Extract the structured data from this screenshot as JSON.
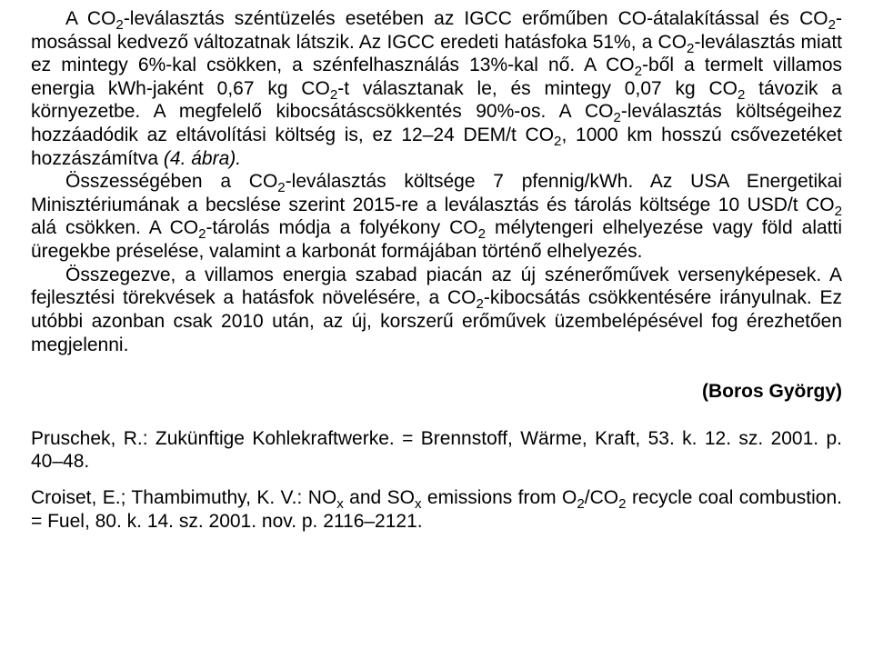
{
  "body": {
    "p1a": "A CO",
    "p1b": "-leválasztás széntüzelés esetében az IGCC erőműben CO-átalakítással és CO",
    "p1c": "-mosással kedvező változatnak látszik. Az IGCC eredeti hatásfoka 51%, a CO",
    "p1d": "-leválasztás miatt ez mintegy 6%-kal csökken, a szénfelhasználás 13%-kal nő. A CO",
    "p1e": "-ből a termelt villamos energia kWh-jaként 0,67 kg CO",
    "p1f": "-t választanak le, és mintegy 0,07 kg CO",
    "p1g": " távozik a környezetbe. A megfelelő kibocsátáscsökkentés 90%-os. A CO",
    "p1h": "-leválasztás költségeihez hozzáadódik az eltávolítási költség is, ez 12–24 DEM/t CO",
    "p1i": ", 1000 km hosszú csővezetéket hozzászámítva ",
    "p1j": "(4. ábra).",
    "p2a": "Összességében a CO",
    "p2b": "-leválasztás költsége 7 pfennig/kWh. Az USA Energetikai Minisztériumának a becslése szerint 2015-re a leválasztás és tárolás költsége 10 USD/t CO",
    "p2c": " alá csökken. A CO",
    "p2d": "-tárolás módja a folyékony CO",
    "p2e": " mélytengeri elhelyezése vagy föld alatti üregekbe préselése, valamint a karbonát formájában történő elhelyezés.",
    "p3a": "Összegezve, a villamos energia szabad piacán az új szénerőművek versenyképesek. A fejlesztési törekvések a hatásfok növelésére, a CO",
    "p3b": "-kibocsátás csökkentésére irányulnak. Ez utóbbi azonban csak 2010 után, az új, korszerű erőművek üzembelépésével fog érezhetően megjelenni."
  },
  "author": "(Boros György)",
  "refs": {
    "r1": "Pruschek, R.: Zukünftige Kohlekraftwerke. = Brennstoff, Wärme, Kraft, 53. k. 12. sz. 2001. p. 40–48.",
    "r2a": "Croiset, E.; Thambimuthy, K. V.: NO",
    "r2b": " and SO",
    "r2c": " emissions from O",
    "r2d": "/CO",
    "r2e": " recycle coal combustion. = Fuel, 80. k. 14. sz. 2001. nov. p. 2116–2121."
  },
  "sub2": "2",
  "subx": "x"
}
